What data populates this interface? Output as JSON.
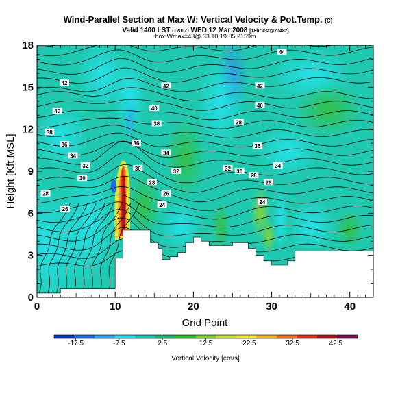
{
  "chart_data": {
    "type": "heatmap",
    "title": "Wind-Parallel Section at Max W: Vertical Velocity & Pot.Temp.",
    "title_mark": "(C)",
    "subtitle_pre": "Valid 1400 LST",
    "subtitle_time": "(1200Z)",
    "subtitle_date": "WED 12 Mar 2008",
    "subtitle_post": "[18hr cst@2048z]",
    "subtitle2": "box:Wmax=43@ 33.10,19.05,2159m",
    "xlabel": "Grid Point",
    "ylabel": "Height [Kft MSL]",
    "xlim": [
      0,
      43
    ],
    "ylim": [
      0,
      18
    ],
    "xticks": [
      0,
      10,
      20,
      30,
      40
    ],
    "yticks": [
      0,
      3,
      6,
      9,
      12,
      15,
      18
    ],
    "colorbar": {
      "label": "Vertical Velocity [cm/s]",
      "ticks": [
        "-17.5",
        "-7.5",
        "2.5",
        "12.5",
        "22.5",
        "32.5",
        "42.5"
      ],
      "range": [
        -22.5,
        47.5
      ],
      "colors": [
        "#0a2fc0",
        "#1768e6",
        "#2fa7f5",
        "#22e0ef",
        "#16c9b4",
        "#19bc6f",
        "#2fbf2c",
        "#7ed22a",
        "#c6e22b",
        "#f2e82a",
        "#f6b522",
        "#f1731d",
        "#dd2f1c",
        "#b0121a",
        "#7a0c52"
      ]
    },
    "theta_contour_labels": [
      {
        "value": "44",
        "x": 31.3,
        "y": 17.5
      },
      {
        "value": "42",
        "x": 3.5,
        "y": 15.3
      },
      {
        "value": "42",
        "x": 16.5,
        "y": 15.1
      },
      {
        "value": "42",
        "x": 28.5,
        "y": 15.1
      },
      {
        "value": "40",
        "x": 2.6,
        "y": 13.3
      },
      {
        "value": "40",
        "x": 15.0,
        "y": 13.5
      },
      {
        "value": "40",
        "x": 28.5,
        "y": 13.7
      },
      {
        "value": "38",
        "x": 1.6,
        "y": 11.8
      },
      {
        "value": "38",
        "x": 15.3,
        "y": 12.4
      },
      {
        "value": "38",
        "x": 25.8,
        "y": 12.5
      },
      {
        "value": "36",
        "x": 3.5,
        "y": 10.9
      },
      {
        "value": "36",
        "x": 12.7,
        "y": 11.0
      },
      {
        "value": "36",
        "x": 28.2,
        "y": 10.8
      },
      {
        "value": "34",
        "x": 4.6,
        "y": 10.1
      },
      {
        "value": "34",
        "x": 16.5,
        "y": 10.3
      },
      {
        "value": "34",
        "x": 30.8,
        "y": 9.4
      },
      {
        "value": "32",
        "x": 6.2,
        "y": 9.4
      },
      {
        "value": "32",
        "x": 17.8,
        "y": 9.0
      },
      {
        "value": "32",
        "x": 24.4,
        "y": 9.2
      },
      {
        "value": "30",
        "x": 5.8,
        "y": 8.5
      },
      {
        "value": "30",
        "x": 12.9,
        "y": 9.2
      },
      {
        "value": "30",
        "x": 25.9,
        "y": 9.0
      },
      {
        "value": "28",
        "x": 1.1,
        "y": 7.4
      },
      {
        "value": "28",
        "x": 14.7,
        "y": 8.2
      },
      {
        "value": "28",
        "x": 27.7,
        "y": 8.7
      },
      {
        "value": "26",
        "x": 3.6,
        "y": 6.3
      },
      {
        "value": "26",
        "x": 16.5,
        "y": 7.4
      },
      {
        "value": "26",
        "x": 29.6,
        "y": 8.2
      },
      {
        "value": "24",
        "x": 16.0,
        "y": 6.6
      },
      {
        "value": "24",
        "x": 28.8,
        "y": 6.8
      }
    ],
    "terrain": [
      [
        0,
        0.3
      ],
      [
        3,
        0.3
      ],
      [
        3,
        0.6
      ],
      [
        10,
        0.6
      ],
      [
        10,
        2.8
      ],
      [
        11,
        2.8
      ],
      [
        11,
        4.8
      ],
      [
        14.5,
        4.8
      ],
      [
        14.5,
        3.9
      ],
      [
        15.5,
        3.9
      ],
      [
        15.5,
        3.5
      ],
      [
        16,
        3.5
      ],
      [
        16,
        2.7
      ],
      [
        17,
        2.7
      ],
      [
        17,
        2.9
      ],
      [
        18,
        2.9
      ],
      [
        18,
        3.2
      ],
      [
        19,
        3.2
      ],
      [
        19,
        3.9
      ],
      [
        20,
        3.9
      ],
      [
        20,
        4.3
      ],
      [
        21,
        4.3
      ],
      [
        21,
        4.0
      ],
      [
        22,
        4.0
      ],
      [
        22,
        3.7
      ],
      [
        25,
        3.7
      ],
      [
        25,
        3.9
      ],
      [
        27,
        3.9
      ],
      [
        27,
        3.5
      ],
      [
        28,
        3.5
      ],
      [
        28,
        3.0
      ],
      [
        29,
        3.0
      ],
      [
        29,
        2.6
      ],
      [
        30,
        2.6
      ],
      [
        30,
        2.3
      ],
      [
        32,
        2.3
      ],
      [
        32,
        2.6
      ],
      [
        33,
        2.6
      ],
      [
        33,
        3.3
      ],
      [
        43,
        3.3
      ]
    ]
  }
}
